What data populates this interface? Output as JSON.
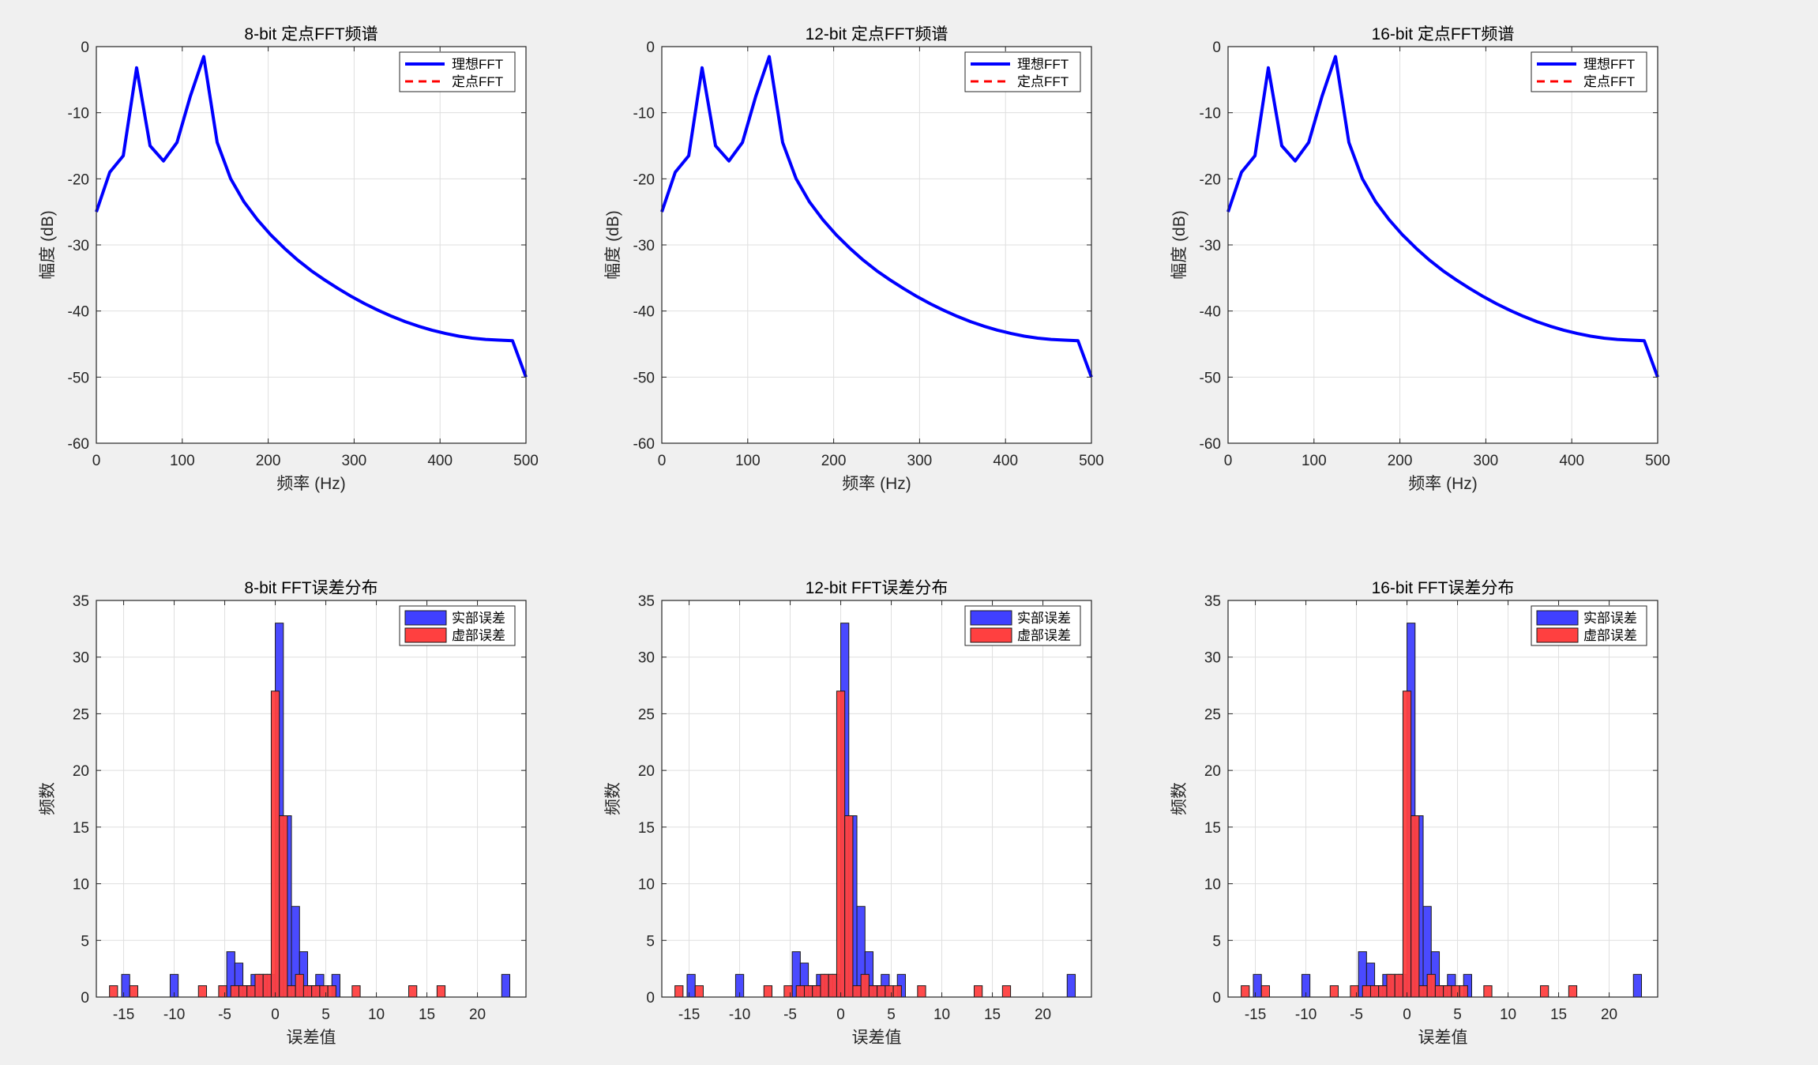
{
  "figure": {
    "background": "#f0f0f0",
    "axes_background": "#ffffff"
  },
  "colors": {
    "ideal": "#0000ff",
    "fixed": "#ff0000",
    "real_fill": "#4040ff",
    "imag_fill": "#ff4040",
    "grid": "#dfdfdf",
    "axis": "#262626"
  },
  "chart_data": [
    {
      "type": "line",
      "title": "8-bit 定点FFT频谱",
      "xlabel": "频率 (Hz)",
      "ylabel": "幅度 (dB)",
      "xlim": [
        0,
        500
      ],
      "ylim": [
        -60,
        0
      ],
      "xticks": [
        0,
        100,
        200,
        300,
        400,
        500
      ],
      "yticks": [
        0,
        -10,
        -20,
        -30,
        -40,
        -50,
        -60
      ],
      "grid": true,
      "legend_position": "top-right",
      "legend": [
        "理想FFT",
        "定点FFT"
      ],
      "series": [
        {
          "name": "理想FFT",
          "style": "solid",
          "x": [
            0,
            15.6,
            31.3,
            46.9,
            62.5,
            78.1,
            93.8,
            109.4,
            125,
            140.6,
            156.3,
            171.9,
            187.5,
            203.1,
            218.8,
            234.4,
            250,
            265.6,
            281.3,
            296.9,
            312.5,
            328.1,
            343.8,
            359.4,
            375,
            390.6,
            406.3,
            421.9,
            437.5,
            453.1,
            468.8,
            484.4,
            500
          ],
          "y": [
            -25,
            -19,
            -16.5,
            -3.2,
            -15,
            -17.3,
            -14.5,
            -7.5,
            -1.5,
            -14.5,
            -20,
            -23.5,
            -26.2,
            -28.5,
            -30.5,
            -32.3,
            -33.9,
            -35.3,
            -36.6,
            -37.8,
            -38.9,
            -39.9,
            -40.8,
            -41.6,
            -42.3,
            -42.9,
            -43.4,
            -43.8,
            -44.1,
            -44.3,
            -44.4,
            -44.5,
            -50
          ]
        },
        {
          "name": "定点FFT",
          "style": "dashed",
          "x": [
            0,
            15.6,
            31.3,
            46.9,
            62.5,
            78.1,
            93.8,
            109.4,
            125,
            140.6,
            156.3,
            171.9,
            187.5,
            203.1,
            218.8,
            234.4,
            250,
            265.6,
            281.3,
            296.9,
            312.5,
            328.1,
            343.8,
            359.4,
            375,
            390.6,
            406.3,
            421.9,
            437.5,
            453.1,
            468.8,
            484.4,
            500
          ],
          "y": [
            -25,
            -19,
            -16.5,
            -3.2,
            -15,
            -17.3,
            -14.5,
            -7.5,
            -1.5,
            -14.5,
            -20,
            -23.5,
            -26.2,
            -28.5,
            -30.5,
            -32.3,
            -33.9,
            -35.3,
            -36.6,
            -37.8,
            -38.9,
            -39.9,
            -40.8,
            -41.6,
            -42.3,
            -42.9,
            -43.4,
            -43.8,
            -44.1,
            -44.3,
            -44.4,
            -44.5,
            -50
          ]
        }
      ]
    },
    {
      "type": "line",
      "title": "12-bit 定点FFT频谱",
      "xlabel": "频率 (Hz)",
      "ylabel": "幅度 (dB)",
      "xlim": [
        0,
        500
      ],
      "ylim": [
        -60,
        0
      ],
      "xticks": [
        0,
        100,
        200,
        300,
        400,
        500
      ],
      "yticks": [
        0,
        -10,
        -20,
        -30,
        -40,
        -50,
        -60
      ],
      "grid": true,
      "legend_position": "top-right",
      "legend": [
        "理想FFT",
        "定点FFT"
      ],
      "series": [
        {
          "name": "理想FFT",
          "style": "solid",
          "x": [
            0,
            15.6,
            31.3,
            46.9,
            62.5,
            78.1,
            93.8,
            109.4,
            125,
            140.6,
            156.3,
            171.9,
            187.5,
            203.1,
            218.8,
            234.4,
            250,
            265.6,
            281.3,
            296.9,
            312.5,
            328.1,
            343.8,
            359.4,
            375,
            390.6,
            406.3,
            421.9,
            437.5,
            453.1,
            468.8,
            484.4,
            500
          ],
          "y": [
            -25,
            -19,
            -16.5,
            -3.2,
            -15,
            -17.3,
            -14.5,
            -7.5,
            -1.5,
            -14.5,
            -20,
            -23.5,
            -26.2,
            -28.5,
            -30.5,
            -32.3,
            -33.9,
            -35.3,
            -36.6,
            -37.8,
            -38.9,
            -39.9,
            -40.8,
            -41.6,
            -42.3,
            -42.9,
            -43.4,
            -43.8,
            -44.1,
            -44.3,
            -44.4,
            -44.5,
            -50
          ]
        },
        {
          "name": "定点FFT",
          "style": "dashed",
          "x": [
            0,
            15.6,
            31.3,
            46.9,
            62.5,
            78.1,
            93.8,
            109.4,
            125,
            140.6,
            156.3,
            171.9,
            187.5,
            203.1,
            218.8,
            234.4,
            250,
            265.6,
            281.3,
            296.9,
            312.5,
            328.1,
            343.8,
            359.4,
            375,
            390.6,
            406.3,
            421.9,
            437.5,
            453.1,
            468.8,
            484.4,
            500
          ],
          "y": [
            -25,
            -19,
            -16.5,
            -3.2,
            -15,
            -17.3,
            -14.5,
            -7.5,
            -1.5,
            -14.5,
            -20,
            -23.5,
            -26.2,
            -28.5,
            -30.5,
            -32.3,
            -33.9,
            -35.3,
            -36.6,
            -37.8,
            -38.9,
            -39.9,
            -40.8,
            -41.6,
            -42.3,
            -42.9,
            -43.4,
            -43.8,
            -44.1,
            -44.3,
            -44.4,
            -44.5,
            -50
          ]
        }
      ]
    },
    {
      "type": "line",
      "title": "16-bit 定点FFT频谱",
      "xlabel": "频率 (Hz)",
      "ylabel": "幅度 (dB)",
      "xlim": [
        0,
        500
      ],
      "ylim": [
        -60,
        0
      ],
      "xticks": [
        0,
        100,
        200,
        300,
        400,
        500
      ],
      "yticks": [
        0,
        -10,
        -20,
        -30,
        -40,
        -50,
        -60
      ],
      "grid": true,
      "legend_position": "top-right",
      "legend": [
        "理想FFT",
        "定点FFT"
      ],
      "series": [
        {
          "name": "理想FFT",
          "style": "solid",
          "x": [
            0,
            15.6,
            31.3,
            46.9,
            62.5,
            78.1,
            93.8,
            109.4,
            125,
            140.6,
            156.3,
            171.9,
            187.5,
            203.1,
            218.8,
            234.4,
            250,
            265.6,
            281.3,
            296.9,
            312.5,
            328.1,
            343.8,
            359.4,
            375,
            390.6,
            406.3,
            421.9,
            437.5,
            453.1,
            468.8,
            484.4,
            500
          ],
          "y": [
            -25,
            -19,
            -16.5,
            -3.2,
            -15,
            -17.3,
            -14.5,
            -7.5,
            -1.5,
            -14.5,
            -20,
            -23.5,
            -26.2,
            -28.5,
            -30.5,
            -32.3,
            -33.9,
            -35.3,
            -36.6,
            -37.8,
            -38.9,
            -39.9,
            -40.8,
            -41.6,
            -42.3,
            -42.9,
            -43.4,
            -43.8,
            -44.1,
            -44.3,
            -44.4,
            -44.5,
            -50
          ]
        },
        {
          "name": "定点FFT",
          "style": "dashed",
          "x": [
            0,
            15.6,
            31.3,
            46.9,
            62.5,
            78.1,
            93.8,
            109.4,
            125,
            140.6,
            156.3,
            171.9,
            187.5,
            203.1,
            218.8,
            234.4,
            250,
            265.6,
            281.3,
            296.9,
            312.5,
            328.1,
            343.8,
            359.4,
            375,
            390.6,
            406.3,
            421.9,
            437.5,
            453.1,
            468.8,
            484.4,
            500
          ],
          "y": [
            -25,
            -19,
            -16.5,
            -3.2,
            -15,
            -17.3,
            -14.5,
            -7.5,
            -1.5,
            -14.5,
            -20,
            -23.5,
            -26.2,
            -28.5,
            -30.5,
            -32.3,
            -33.9,
            -35.3,
            -36.6,
            -37.8,
            -38.9,
            -39.9,
            -40.8,
            -41.6,
            -42.3,
            -42.9,
            -43.4,
            -43.8,
            -44.1,
            -44.3,
            -44.4,
            -44.5,
            -50
          ]
        }
      ]
    },
    {
      "type": "histogram",
      "title": "8-bit FFT误差分布",
      "xlabel": "误差值",
      "ylabel": "频数",
      "xlim": [
        -17.7,
        24.8
      ],
      "ylim": [
        0,
        35
      ],
      "xticks": [
        -15,
        -10,
        -5,
        0,
        5,
        10,
        15,
        20
      ],
      "yticks": [
        0,
        5,
        10,
        15,
        20,
        25,
        30,
        35
      ],
      "grid": true,
      "legend_position": "top-right",
      "legend": [
        "实部误差",
        "虚部误差"
      ],
      "bin_width": 0.8,
      "series": [
        {
          "name": "实部误差",
          "bins": [
            [
              -15.2,
              2
            ],
            [
              -10.4,
              2
            ],
            [
              -4.8,
              4
            ],
            [
              -4.0,
              3
            ],
            [
              -3.2,
              1
            ],
            [
              -2.4,
              2
            ],
            [
              -1.6,
              2
            ],
            [
              -0.8,
              2
            ],
            [
              0,
              33
            ],
            [
              0.8,
              16
            ],
            [
              1.6,
              8
            ],
            [
              2.4,
              4
            ],
            [
              3.2,
              1
            ],
            [
              4.0,
              2
            ],
            [
              5.6,
              2
            ],
            [
              22.4,
              2
            ]
          ]
        },
        {
          "name": "虚部误差",
          "bins": [
            [
              -16.4,
              1
            ],
            [
              -14.4,
              1
            ],
            [
              -7.6,
              1
            ],
            [
              -5.6,
              1
            ],
            [
              -4.4,
              1
            ],
            [
              -3.6,
              1
            ],
            [
              -2.8,
              1
            ],
            [
              -2.0,
              2
            ],
            [
              -1.2,
              2
            ],
            [
              -0.4,
              27
            ],
            [
              0.4,
              16
            ],
            [
              1.2,
              1
            ],
            [
              2.0,
              2
            ],
            [
              2.8,
              1
            ],
            [
              3.6,
              1
            ],
            [
              4.4,
              1
            ],
            [
              5.2,
              1
            ],
            [
              7.6,
              1
            ],
            [
              13.2,
              1
            ],
            [
              16.0,
              1
            ]
          ]
        }
      ]
    },
    {
      "type": "histogram",
      "title": "12-bit FFT误差分布",
      "xlabel": "误差值",
      "ylabel": "频数",
      "xlim": [
        -17.7,
        24.8
      ],
      "ylim": [
        0,
        35
      ],
      "xticks": [
        -15,
        -10,
        -5,
        0,
        5,
        10,
        15,
        20
      ],
      "yticks": [
        0,
        5,
        10,
        15,
        20,
        25,
        30,
        35
      ],
      "grid": true,
      "legend_position": "top-right",
      "legend": [
        "实部误差",
        "虚部误差"
      ],
      "bin_width": 0.8,
      "series": [
        {
          "name": "实部误差",
          "bins": [
            [
              -15.2,
              2
            ],
            [
              -10.4,
              2
            ],
            [
              -4.8,
              4
            ],
            [
              -4.0,
              3
            ],
            [
              -3.2,
              1
            ],
            [
              -2.4,
              2
            ],
            [
              -1.6,
              2
            ],
            [
              -0.8,
              2
            ],
            [
              0,
              33
            ],
            [
              0.8,
              16
            ],
            [
              1.6,
              8
            ],
            [
              2.4,
              4
            ],
            [
              3.2,
              1
            ],
            [
              4.0,
              2
            ],
            [
              5.6,
              2
            ],
            [
              22.4,
              2
            ]
          ]
        },
        {
          "name": "虚部误差",
          "bins": [
            [
              -16.4,
              1
            ],
            [
              -14.4,
              1
            ],
            [
              -7.6,
              1
            ],
            [
              -5.6,
              1
            ],
            [
              -4.4,
              1
            ],
            [
              -3.6,
              1
            ],
            [
              -2.8,
              1
            ],
            [
              -2.0,
              2
            ],
            [
              -1.2,
              2
            ],
            [
              -0.4,
              27
            ],
            [
              0.4,
              16
            ],
            [
              1.2,
              1
            ],
            [
              2.0,
              2
            ],
            [
              2.8,
              1
            ],
            [
              3.6,
              1
            ],
            [
              4.4,
              1
            ],
            [
              5.2,
              1
            ],
            [
              7.6,
              1
            ],
            [
              13.2,
              1
            ],
            [
              16.0,
              1
            ]
          ]
        }
      ]
    },
    {
      "type": "histogram",
      "title": "16-bit FFT误差分布",
      "xlabel": "误差值",
      "ylabel": "频数",
      "xlim": [
        -17.7,
        24.8
      ],
      "ylim": [
        0,
        35
      ],
      "xticks": [
        -15,
        -10,
        -5,
        0,
        5,
        10,
        15,
        20
      ],
      "yticks": [
        0,
        5,
        10,
        15,
        20,
        25,
        30,
        35
      ],
      "grid": true,
      "legend_position": "top-right",
      "legend": [
        "实部误差",
        "虚部误差"
      ],
      "bin_width": 0.8,
      "series": [
        {
          "name": "实部误差",
          "bins": [
            [
              -15.2,
              2
            ],
            [
              -10.4,
              2
            ],
            [
              -4.8,
              4
            ],
            [
              -4.0,
              3
            ],
            [
              -3.2,
              1
            ],
            [
              -2.4,
              2
            ],
            [
              -1.6,
              2
            ],
            [
              -0.8,
              2
            ],
            [
              0,
              33
            ],
            [
              0.8,
              16
            ],
            [
              1.6,
              8
            ],
            [
              2.4,
              4
            ],
            [
              3.2,
              1
            ],
            [
              4.0,
              2
            ],
            [
              5.6,
              2
            ],
            [
              22.4,
              2
            ]
          ]
        },
        {
          "name": "虚部误差",
          "bins": [
            [
              -16.4,
              1
            ],
            [
              -14.4,
              1
            ],
            [
              -7.6,
              1
            ],
            [
              -5.6,
              1
            ],
            [
              -4.4,
              1
            ],
            [
              -3.6,
              1
            ],
            [
              -2.8,
              1
            ],
            [
              -2.0,
              2
            ],
            [
              -1.2,
              2
            ],
            [
              -0.4,
              27
            ],
            [
              0.4,
              16
            ],
            [
              1.2,
              1
            ],
            [
              2.0,
              2
            ],
            [
              2.8,
              1
            ],
            [
              3.6,
              1
            ],
            [
              4.4,
              1
            ],
            [
              5.2,
              1
            ],
            [
              7.6,
              1
            ],
            [
              13.2,
              1
            ],
            [
              16.0,
              1
            ]
          ]
        }
      ]
    }
  ]
}
